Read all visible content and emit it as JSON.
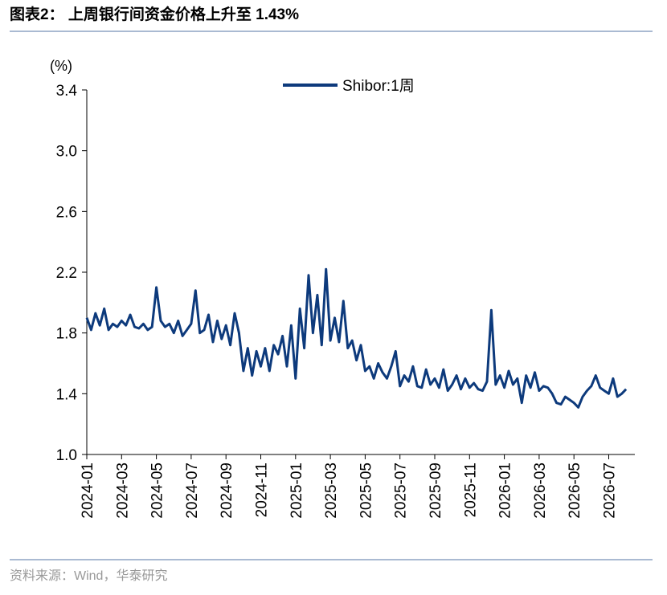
{
  "chart_data": {
    "type": "line",
    "title": "图表2： 上周银行间资金价格上升至 1.43%",
    "y_label": "(%)",
    "source": "资料来源：Wind，华泰研究",
    "x": [
      "2024-01",
      "2024-01",
      "2024-01",
      "2024-01",
      "2024-02",
      "2024-02",
      "2024-02",
      "2024-02",
      "2024-03",
      "2024-03",
      "2024-03",
      "2024-03",
      "2024-04",
      "2024-04",
      "2024-04",
      "2024-04",
      "2024-05",
      "2024-05",
      "2024-05",
      "2024-05",
      "2024-06",
      "2024-06",
      "2024-06",
      "2024-06",
      "2024-07",
      "2024-07",
      "2024-07",
      "2024-07",
      "2024-08",
      "2024-08",
      "2024-08",
      "2024-08",
      "2024-09",
      "2024-09",
      "2024-09",
      "2024-09",
      "2024-10",
      "2024-10",
      "2024-10",
      "2024-10",
      "2024-11",
      "2024-11",
      "2024-11",
      "2024-11",
      "2024-12",
      "2024-12",
      "2024-12",
      "2024-12",
      "2025-01",
      "2025-01",
      "2025-01",
      "2025-01",
      "2025-02",
      "2025-02",
      "2025-02",
      "2025-02",
      "2025-03",
      "2025-03",
      "2025-03",
      "2025-03",
      "2025-04",
      "2025-04",
      "2025-04",
      "2025-04",
      "2025-05",
      "2025-05",
      "2025-05",
      "2025-05",
      "2025-06",
      "2025-06",
      "2025-06",
      "2025-06",
      "2025-07",
      "2025-07",
      "2025-07",
      "2025-07",
      "2025-08",
      "2025-08",
      "2025-08",
      "2025-08",
      "2025-09",
      "2025-09",
      "2025-09",
      "2025-09",
      "2025-10",
      "2025-10",
      "2025-10",
      "2025-10",
      "2025-11",
      "2025-11",
      "2025-11",
      "2025-11",
      "2025-12",
      "2025-12",
      "2025-12",
      "2025-12",
      "2026-01",
      "2026-01",
      "2026-01",
      "2026-01",
      "2026-02",
      "2026-02",
      "2026-02",
      "2026-02",
      "2026-03",
      "2026-03",
      "2026-03",
      "2026-03",
      "2026-04",
      "2026-04",
      "2026-04",
      "2026-04",
      "2026-05",
      "2026-05",
      "2026-05",
      "2026-05",
      "2026-06",
      "2026-06",
      "2026-06",
      "2026-06",
      "2026-07",
      "2026-07",
      "2026-07",
      "2026-07",
      "2026-08"
    ],
    "series": [
      {
        "name": "Shibor:1周",
        "color": "#0d3a7c",
        "values": [
          1.9,
          1.82,
          1.93,
          1.85,
          1.96,
          1.82,
          1.86,
          1.84,
          1.88,
          1.85,
          1.92,
          1.84,
          1.83,
          1.86,
          1.82,
          1.84,
          2.1,
          1.88,
          1.84,
          1.86,
          1.8,
          1.88,
          1.78,
          1.82,
          1.86,
          2.08,
          1.8,
          1.82,
          1.92,
          1.74,
          1.88,
          1.76,
          1.85,
          1.72,
          1.93,
          1.8,
          1.55,
          1.7,
          1.52,
          1.68,
          1.58,
          1.7,
          1.55,
          1.72,
          1.66,
          1.78,
          1.58,
          1.85,
          1.5,
          1.96,
          1.7,
          2.18,
          1.8,
          2.05,
          1.72,
          2.22,
          1.75,
          1.9,
          1.74,
          2.01,
          1.7,
          1.75,
          1.62,
          1.72,
          1.55,
          1.58,
          1.5,
          1.6,
          1.54,
          1.5,
          1.58,
          1.68,
          1.45,
          1.52,
          1.48,
          1.58,
          1.45,
          1.44,
          1.56,
          1.46,
          1.5,
          1.44,
          1.56,
          1.42,
          1.46,
          1.52,
          1.43,
          1.5,
          1.44,
          1.47,
          1.43,
          1.42,
          1.48,
          1.95,
          1.46,
          1.52,
          1.44,
          1.55,
          1.46,
          1.5,
          1.34,
          1.52,
          1.44,
          1.54,
          1.42,
          1.45,
          1.44,
          1.4,
          1.34,
          1.33,
          1.38,
          1.36,
          1.34,
          1.31,
          1.38,
          1.42,
          1.45,
          1.52,
          1.44,
          1.42,
          1.4,
          1.5,
          1.38,
          1.4,
          1.43
        ]
      }
    ],
    "xticks": [
      "2024-01",
      "2024-03",
      "2024-05",
      "2024-07",
      "2024-09",
      "2024-11",
      "2025-01",
      "2025-03",
      "2025-05",
      "2025-07",
      "2025-09",
      "2025-11",
      "2026-01",
      "2026-03",
      "2026-05",
      "2026-07"
    ],
    "ylim": [
      1.0,
      3.4
    ],
    "yticks": [
      {
        "value": 1,
        "label": "1.0"
      },
      1.4,
      1.8,
      2.2,
      2.6,
      {
        "value": 3,
        "label": "3.0"
      },
      3.4
    ],
    "legend": "top"
  }
}
